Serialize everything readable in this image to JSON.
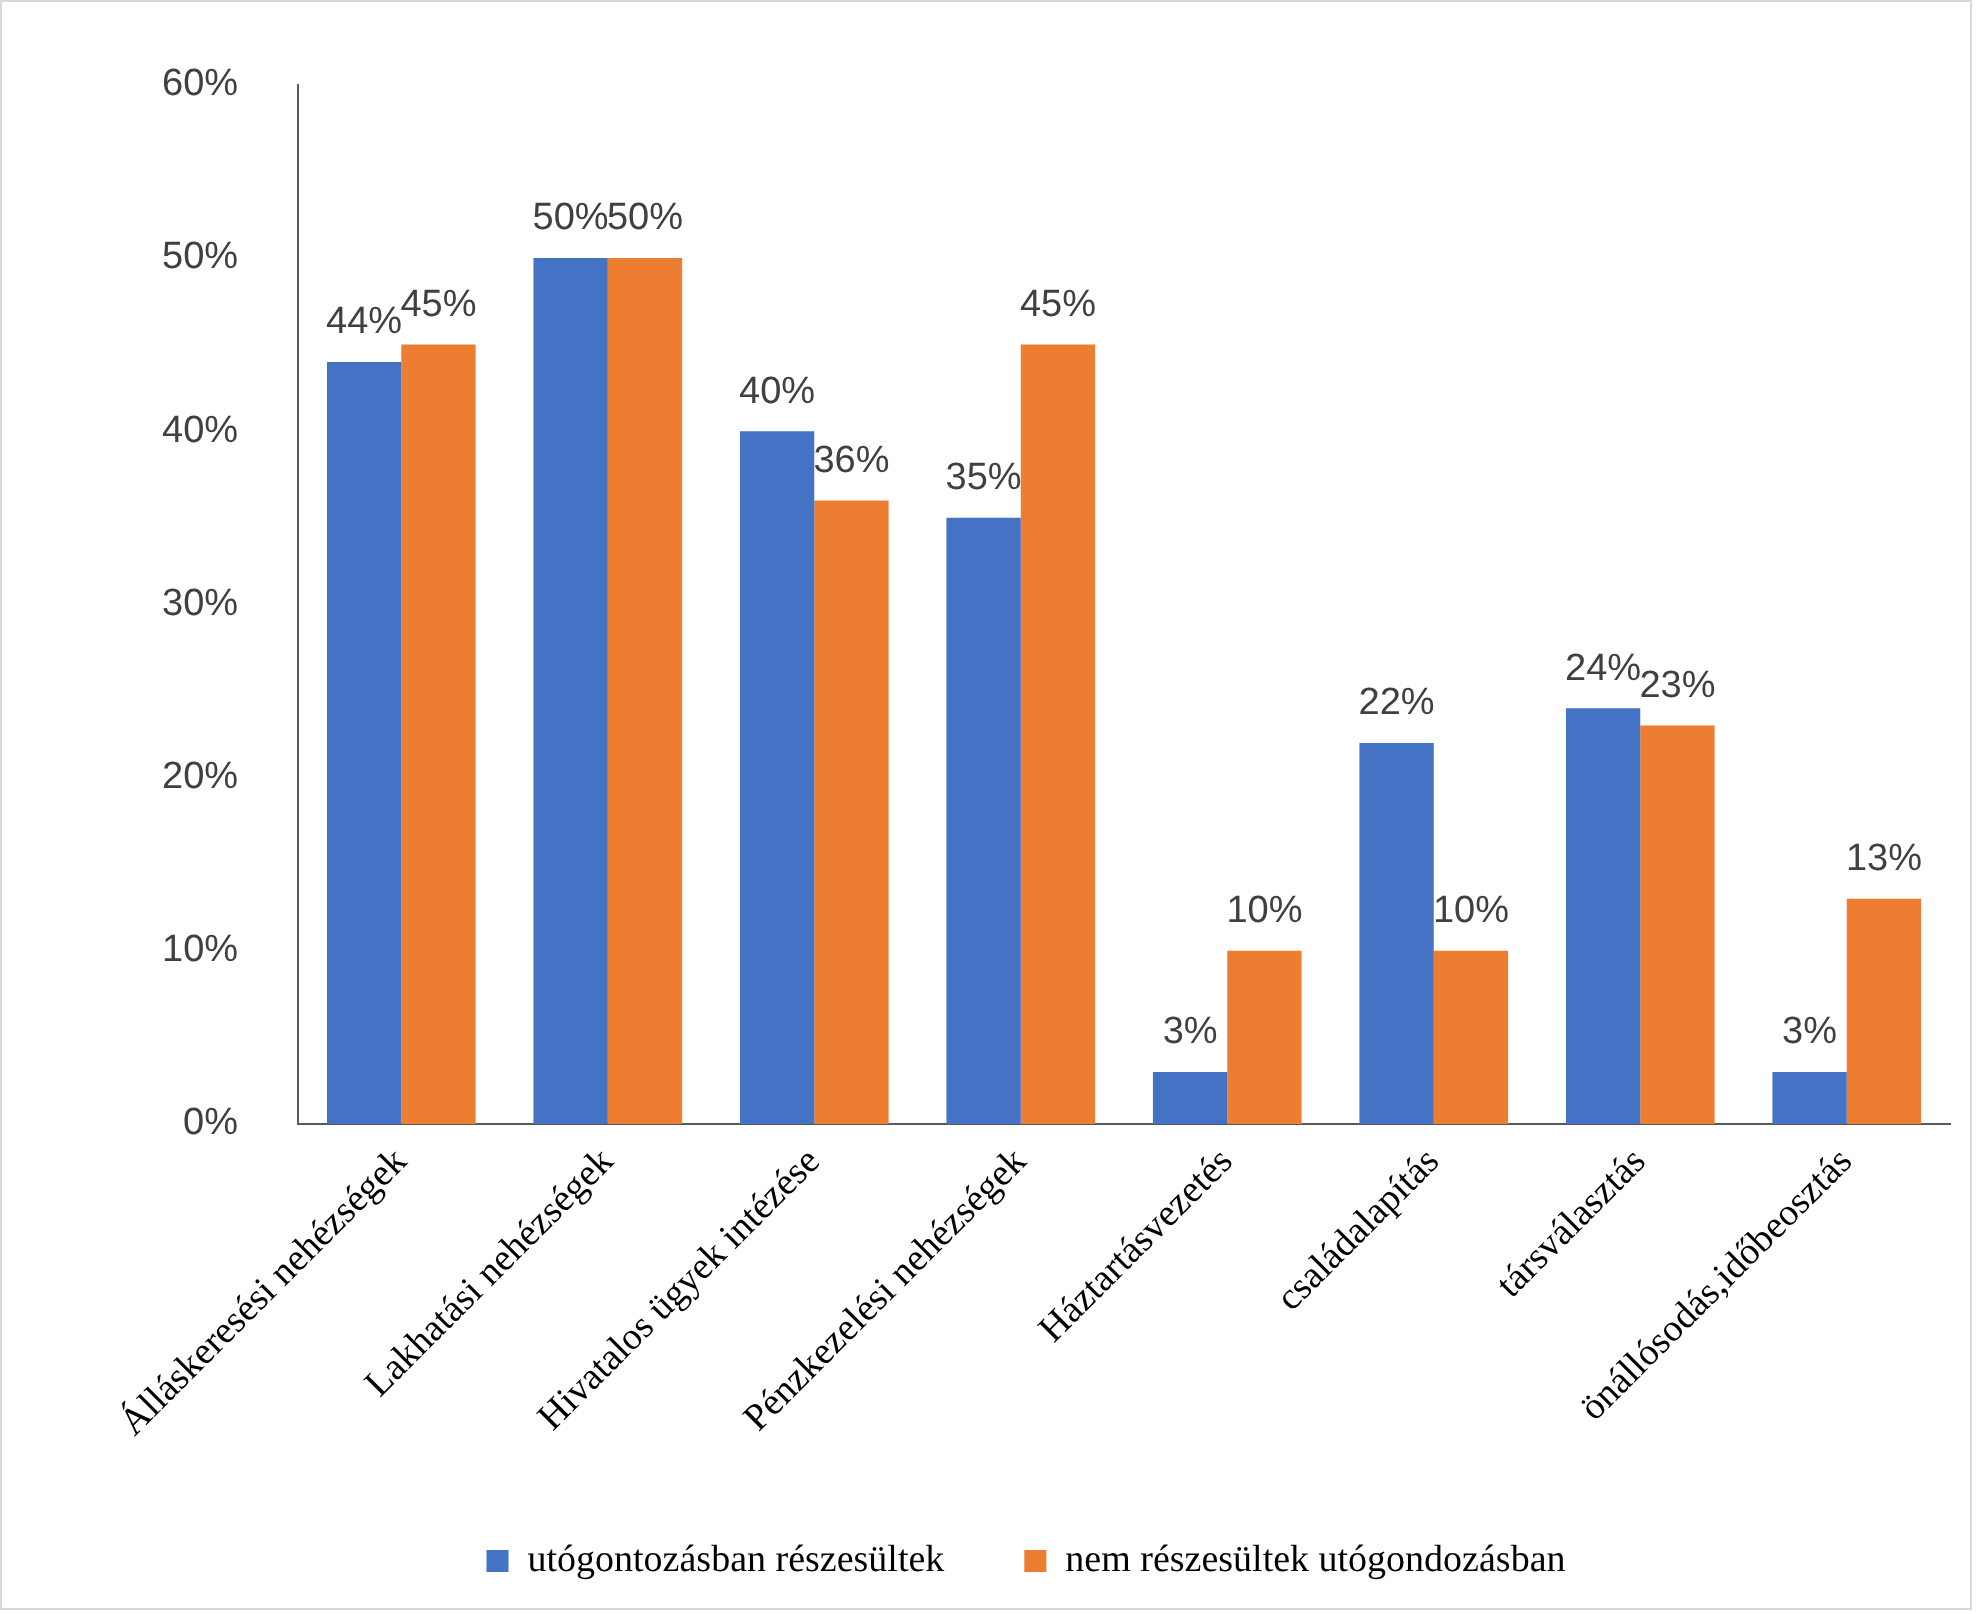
{
  "chart_data": {
    "type": "bar",
    "categories": [
      "Álláskeresési nehézségek",
      "Lakhatási nehézségek",
      "Hivatalos ügyek intézése",
      "Pénzkezelési nehézségek",
      "Háztartásvezetés",
      "családalapítás",
      "társválasztás",
      "önállósodás,időbeosztás"
    ],
    "series": [
      {
        "name": "utógontozásban részesültek",
        "color": "#4472c4",
        "values": [
          44,
          50,
          40,
          35,
          3,
          22,
          24,
          3
        ],
        "value_labels": [
          "44%",
          "50%",
          "40%",
          "35%",
          "3%",
          "22%",
          "24%",
          "3%"
        ]
      },
      {
        "name": "nem részesültek utógondozásban",
        "color": "#ed7d31",
        "values": [
          45,
          50,
          36,
          45,
          10,
          10,
          23,
          13
        ],
        "value_labels": [
          "45%",
          "50%",
          "36%",
          "45%",
          "10%",
          "10%",
          "23%",
          "13%"
        ]
      }
    ],
    "ylim": [
      0,
      60
    ],
    "yticks": [
      {
        "value": 0,
        "label": "0%"
      },
      {
        "value": 10,
        "label": "10%"
      },
      {
        "value": 20,
        "label": "20%"
      },
      {
        "value": 30,
        "label": "30%"
      },
      {
        "value": 40,
        "label": "40%"
      },
      {
        "value": 50,
        "label": "50%"
      },
      {
        "value": 60,
        "label": "60%"
      }
    ],
    "grid": false,
    "legend": "bottom"
  }
}
